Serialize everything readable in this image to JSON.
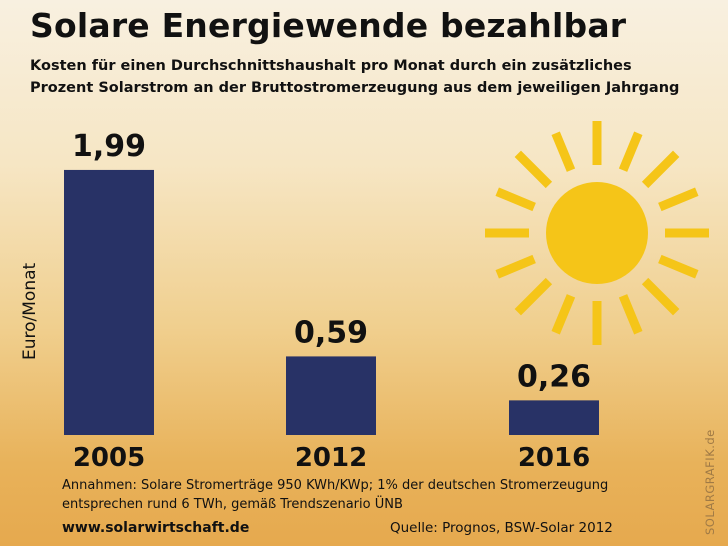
{
  "chart_data": {
    "type": "bar",
    "title": "Solare Energiewende bezahlbar",
    "subtitle": [
      "Kosten für einen Durchschnittshaushalt pro Monat durch ein zusätzliches",
      "Prozent Solarstrom an der Bruttostromerzeugung aus dem jeweiligen Jahrgang"
    ],
    "ylabel": "Euro/Monat",
    "xlabel": "",
    "categories": [
      "2005",
      "2012",
      "2016"
    ],
    "values": [
      1.99,
      0.59,
      0.26
    ],
    "data_labels": [
      "1,99",
      "0,59",
      "0,26"
    ],
    "ylim": [
      0,
      2.0
    ],
    "grid": false,
    "bar_color": "#283266",
    "sun_color": "#f5c518"
  },
  "notes": [
    "Annahmen: Solare Stromerträge 950 KWh/KWp; 1% der deutschen Stromerzeugung",
    "entsprechen rund 6 TWh, gemäß Trendszenario ÜNB"
  ],
  "url": "www.solarwirtschaft.de",
  "source": "Quelle: Prognos, BSW-Solar 2012",
  "credit": "SOLARGRAFIK.de"
}
